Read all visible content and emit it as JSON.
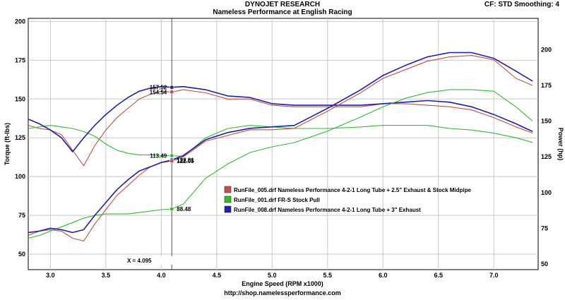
{
  "header": {
    "title": "DYNOJET RESEARCH",
    "subtitle": "Nameless Performance at English Racing",
    "cf_info": "CF: STD   Smoothing: 4"
  },
  "footer": {
    "url": "http://shop.namelessperformance.com"
  },
  "cursor": {
    "label": "X = 4.095",
    "x": 4.095
  },
  "colors": {
    "red": "#c0504d",
    "green": "#33bb33",
    "blue": "#1f1fa8",
    "gridline": "#c8c8c8"
  },
  "chart_data": {
    "type": "line",
    "xlabel": "Engine Speed (RPM x1000)",
    "ylabel_left": "Torque (ft-lbs)",
    "ylabel_right": "Power (hp)",
    "xlim": [
      2.8,
      7.4
    ],
    "ylim_left": [
      40,
      202
    ],
    "ylim_right": [
      46,
      222
    ],
    "grid": true,
    "legend_position": "center-right",
    "x_ticks": [
      "3.0",
      "3.5",
      "4.0",
      "4.5",
      "5.0",
      "5.5",
      "6.0",
      "6.5",
      "7.0"
    ],
    "y_ticks_left": [
      "50",
      "75",
      "100",
      "125",
      "150",
      "175",
      "200"
    ],
    "y_ticks_right": [
      "50",
      "75",
      "100",
      "125",
      "150",
      "175",
      "200"
    ],
    "legend": [
      {
        "name": "RunFile_005.drf Nameless Performance 4-2-1 Long Tube + 2.5\" Exhaust & Stock Midpipe",
        "color": "#c0504d"
      },
      {
        "name": "RunFile_001.drf FR-S Stock Pull",
        "color": "#33bb33"
      },
      {
        "name": "RunFile_008.drf Nameless Performance 4-2-1 Long Tube + 3\" Exhaust",
        "color": "#1f1fa8"
      }
    ],
    "series": [
      {
        "name": "RunFile_005.drf Nameless Performance 4-2-1 Long Tube + 2.5\" Exhaust & Stock Midpipe",
        "metric": "torque",
        "axis": "left",
        "color": "#c0504d",
        "x": [
          2.8,
          2.9,
          3.0,
          3.1,
          3.2,
          3.3,
          3.4,
          3.5,
          3.6,
          3.7,
          3.8,
          3.9,
          4.0,
          4.095,
          4.2,
          4.4,
          4.6,
          4.8,
          5.0,
          5.2,
          5.5,
          5.8,
          6.0,
          6.2,
          6.4,
          6.6,
          6.8,
          7.0,
          7.2,
          7.35
        ],
        "y": [
          133,
          131,
          130,
          127,
          117,
          107,
          120,
          130,
          138,
          144,
          150,
          153,
          155,
          154.54,
          156,
          154,
          150,
          150,
          146,
          145,
          145,
          145,
          147,
          147,
          146,
          145,
          143,
          138,
          132,
          128
        ]
      },
      {
        "name": "RunFile_001.drf FR-S Stock Pull",
        "metric": "torque",
        "axis": "left",
        "color": "#33bb33",
        "x": [
          2.8,
          2.9,
          3.0,
          3.1,
          3.2,
          3.3,
          3.4,
          3.5,
          3.6,
          3.7,
          3.8,
          3.9,
          4.0,
          4.095,
          4.2,
          4.4,
          4.6,
          4.8,
          5.0,
          5.2,
          5.5,
          5.8,
          6.0,
          6.2,
          6.4,
          6.6,
          6.8,
          7.0,
          7.2,
          7.35
        ],
        "y": [
          131,
          132,
          133,
          132,
          131,
          129,
          126,
          121,
          117,
          115,
          114,
          114,
          113.5,
          113.49,
          113,
          125,
          131,
          133,
          132,
          131,
          131,
          132,
          133,
          133,
          133,
          131,
          130,
          128,
          125,
          122
        ]
      },
      {
        "name": "RunFile_008.drf Nameless Performance 4-2-1 Long Tube + 3\" Exhaust",
        "metric": "torque",
        "axis": "left",
        "color": "#1f1fa8",
        "x": [
          2.8,
          2.9,
          3.0,
          3.1,
          3.2,
          3.3,
          3.4,
          3.5,
          3.6,
          3.7,
          3.8,
          3.9,
          4.0,
          4.095,
          4.2,
          4.4,
          4.6,
          4.8,
          5.0,
          5.2,
          5.5,
          5.8,
          6.0,
          6.2,
          6.4,
          6.6,
          6.8,
          7.0,
          7.2,
          7.35
        ],
        "y": [
          137,
          134,
          130,
          125,
          116,
          125,
          133,
          140,
          146,
          151,
          155,
          157,
          158,
          157.52,
          158,
          156,
          152,
          151,
          147,
          146,
          146,
          146,
          147,
          148,
          149,
          148,
          145,
          140,
          134,
          129
        ]
      },
      {
        "name": "RunFile_005.drf Nameless Performance 4-2-1 Long Tube + 2.5\" Exhaust & Stock Midpipe",
        "metric": "power",
        "axis": "right",
        "color": "#c0504d",
        "x": [
          2.8,
          2.9,
          3.0,
          3.1,
          3.2,
          3.3,
          3.4,
          3.5,
          3.6,
          3.7,
          3.8,
          3.9,
          4.0,
          4.095,
          4.2,
          4.4,
          4.6,
          4.8,
          5.0,
          5.2,
          5.5,
          5.8,
          6.0,
          6.2,
          6.4,
          6.6,
          6.8,
          7.0,
          7.2,
          7.35
        ],
        "y": [
          70,
          73,
          74,
          73,
          68,
          66,
          78,
          88,
          98,
          105,
          112,
          118,
          121,
          122.05,
          125,
          136,
          140,
          144,
          144,
          145,
          157,
          170,
          180,
          186,
          192,
          195,
          196,
          193,
          180,
          175
        ]
      },
      {
        "name": "RunFile_001.drf FR-S Stock Pull",
        "metric": "power",
        "axis": "right",
        "color": "#33bb33",
        "x": [
          2.8,
          2.9,
          3.0,
          3.1,
          3.2,
          3.3,
          3.4,
          3.5,
          3.6,
          3.7,
          3.8,
          3.9,
          4.0,
          4.095,
          4.2,
          4.4,
          4.6,
          4.8,
          5.0,
          5.2,
          5.5,
          5.8,
          6.0,
          6.2,
          6.4,
          6.6,
          6.8,
          7.0,
          7.2,
          7.35
        ],
        "y": [
          68,
          70,
          73,
          76,
          79,
          82,
          84,
          85,
          85,
          85,
          86,
          87,
          88,
          88.48,
          92,
          110,
          120,
          128,
          132,
          135,
          143,
          153,
          160,
          166,
          170,
          172,
          172,
          171,
          160,
          150
        ]
      },
      {
        "name": "RunFile_008.drf Nameless Performance 4-2-1 Long Tube + 3\" Exhaust",
        "metric": "power",
        "axis": "right",
        "color": "#1f1fa8",
        "x": [
          2.8,
          2.9,
          3.0,
          3.1,
          3.2,
          3.3,
          3.4,
          3.5,
          3.6,
          3.7,
          3.8,
          3.9,
          4.0,
          4.095,
          4.2,
          4.4,
          4.6,
          4.8,
          5.0,
          5.2,
          5.5,
          5.8,
          6.0,
          6.2,
          6.4,
          6.6,
          6.8,
          7.0,
          7.2,
          7.35
        ],
        "y": [
          72,
          73,
          75,
          74,
          72,
          74,
          84,
          93,
          102,
          109,
          115,
          118,
          121,
          122.81,
          126,
          137,
          142,
          145,
          146,
          147,
          159,
          172,
          182,
          189,
          195,
          198,
          198,
          194,
          185,
          178
        ]
      }
    ],
    "markers": [
      {
        "label": "157.52",
        "x": 4.095,
        "y": 157.52,
        "axis": "left",
        "color": "#1f1fa8"
      },
      {
        "label": "154.54",
        "x": 4.095,
        "y": 154.54,
        "axis": "left",
        "color": "#c0504d"
      },
      {
        "label": "113.49",
        "x": 4.095,
        "y": 113.49,
        "axis": "left",
        "color": "#33bb33"
      },
      {
        "label": "122.81",
        "x": 4.095,
        "y": 122.81,
        "axis": "right",
        "color": "#1f1fa8"
      },
      {
        "label": "122.05",
        "x": 4.095,
        "y": 122.05,
        "axis": "right",
        "color": "#c0504d"
      },
      {
        "label": "88.48",
        "x": 4.095,
        "y": 88.48,
        "axis": "right",
        "color": "#33bb33"
      }
    ]
  }
}
